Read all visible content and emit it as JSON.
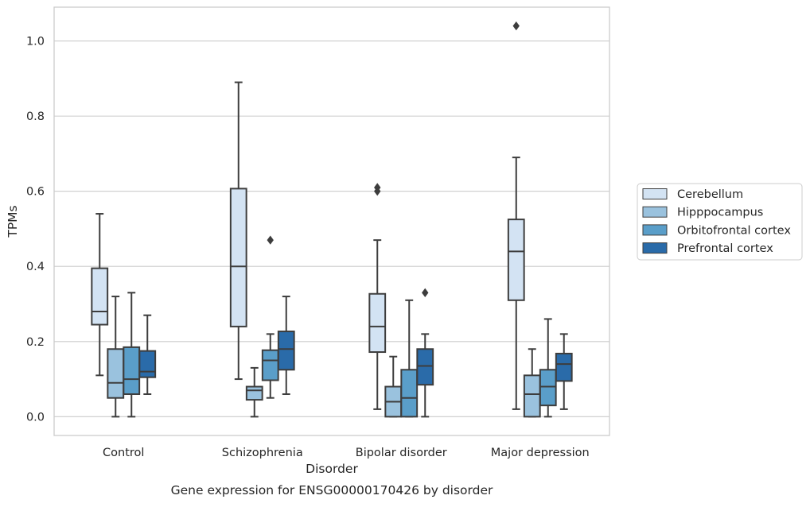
{
  "chart_data": {
    "type": "box",
    "title": "",
    "caption": "Gene expression for ENSG00000170426 by disorder",
    "xlabel": "Disorder",
    "ylabel": "TPMs",
    "ylim": [
      -0.05,
      1.09
    ],
    "yticks": [
      0.0,
      0.2,
      0.4,
      0.6,
      0.8,
      1.0
    ],
    "ytick_labels": [
      "0.0",
      "0.2",
      "0.4",
      "0.6",
      "0.8",
      "1.0"
    ],
    "grid": "horizontal",
    "legend_placement": "right",
    "categories": [
      "Control",
      "Schizophrenia",
      "Bipolar disorder",
      "Major depression"
    ],
    "series": [
      {
        "name": "Cerebellum",
        "color": "#d3e3f3",
        "boxes": [
          {
            "whislo": 0.11,
            "q1": 0.245,
            "med": 0.28,
            "q3": 0.395,
            "whishi": 0.54,
            "fliers": []
          },
          {
            "whislo": 0.1,
            "q1": 0.24,
            "med": 0.4,
            "q3": 0.607,
            "whishi": 0.89,
            "fliers": []
          },
          {
            "whislo": 0.02,
            "q1": 0.172,
            "med": 0.24,
            "q3": 0.327,
            "whishi": 0.47,
            "fliers": [
              0.6,
              0.61
            ]
          },
          {
            "whislo": 0.02,
            "q1": 0.31,
            "med": 0.44,
            "q3": 0.525,
            "whishi": 0.69,
            "fliers": [
              1.04
            ]
          }
        ]
      },
      {
        "name": "Hipppocampus",
        "color": "#9ac2de",
        "boxes": [
          {
            "whislo": 0.0,
            "q1": 0.05,
            "med": 0.09,
            "q3": 0.18,
            "whishi": 0.32,
            "fliers": []
          },
          {
            "whislo": 0.0,
            "q1": 0.045,
            "med": 0.07,
            "q3": 0.08,
            "whishi": 0.13,
            "fliers": []
          },
          {
            "whislo": 0.0,
            "q1": 0.0,
            "med": 0.04,
            "q3": 0.08,
            "whishi": 0.16,
            "fliers": []
          },
          {
            "whislo": 0.0,
            "q1": 0.0,
            "med": 0.06,
            "q3": 0.11,
            "whishi": 0.18,
            "fliers": []
          }
        ]
      },
      {
        "name": "Orbitofrontal cortex",
        "color": "#5a9ec9",
        "boxes": [
          {
            "whislo": 0.0,
            "q1": 0.06,
            "med": 0.1,
            "q3": 0.185,
            "whishi": 0.33,
            "fliers": []
          },
          {
            "whislo": 0.05,
            "q1": 0.097,
            "med": 0.15,
            "q3": 0.177,
            "whishi": 0.22,
            "fliers": [
              0.47
            ]
          },
          {
            "whislo": 0.0,
            "q1": 0.0,
            "med": 0.05,
            "q3": 0.125,
            "whishi": 0.31,
            "fliers": []
          },
          {
            "whislo": 0.0,
            "q1": 0.03,
            "med": 0.08,
            "q3": 0.125,
            "whishi": 0.26,
            "fliers": []
          }
        ]
      },
      {
        "name": "Prefrontal cortex",
        "color": "#2a6ba9",
        "boxes": [
          {
            "whislo": 0.06,
            "q1": 0.105,
            "med": 0.12,
            "q3": 0.175,
            "whishi": 0.27,
            "fliers": []
          },
          {
            "whislo": 0.06,
            "q1": 0.125,
            "med": 0.18,
            "q3": 0.227,
            "whishi": 0.32,
            "fliers": []
          },
          {
            "whislo": 0.0,
            "q1": 0.085,
            "med": 0.135,
            "q3": 0.18,
            "whishi": 0.22,
            "fliers": [
              0.33
            ]
          },
          {
            "whislo": 0.02,
            "q1": 0.095,
            "med": 0.14,
            "q3": 0.168,
            "whishi": 0.22,
            "fliers": []
          }
        ]
      }
    ]
  }
}
